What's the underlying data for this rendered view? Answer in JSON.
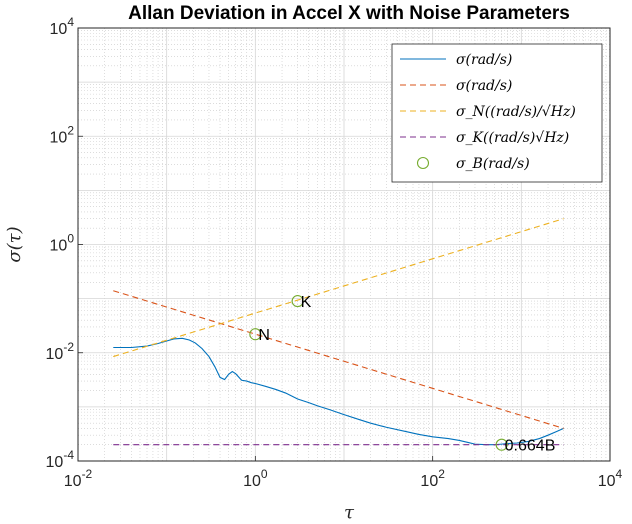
{
  "chart_data": {
    "type": "line",
    "title": "Allan Deviation in Accel X with Noise Parameters",
    "xlabel": "τ",
    "ylabel": "σ(τ)",
    "xscale": "log",
    "yscale": "log",
    "xlim": [
      0.01,
      10000
    ],
    "ylim": [
      0.0001,
      10000
    ],
    "grid": "on (major and minor)",
    "legend_position": "top-right",
    "x_ticks": [
      {
        "value": 0.01,
        "base": "10",
        "exp": "-2"
      },
      {
        "value": 1,
        "base": "10",
        "exp": "0"
      },
      {
        "value": 100,
        "base": "10",
        "exp": "2"
      },
      {
        "value": 10000,
        "base": "10",
        "exp": "4"
      }
    ],
    "y_ticks": [
      {
        "value": 0.0001,
        "base": "10",
        "exp": "-4"
      },
      {
        "value": 0.01,
        "base": "10",
        "exp": "-2"
      },
      {
        "value": 1,
        "base": "10",
        "exp": "0"
      },
      {
        "value": 100,
        "base": "10",
        "exp": "2"
      },
      {
        "value": 10000,
        "base": "10",
        "exp": "4"
      }
    ],
    "series": [
      {
        "name": "σ(rad/s)",
        "color": "#0072BD",
        "dash": "solid",
        "x": [
          0.025,
          0.04,
          0.06,
          0.08,
          0.1,
          0.12,
          0.15,
          0.18,
          0.21,
          0.25,
          0.3,
          0.35,
          0.4,
          0.45,
          0.5,
          0.55,
          0.6,
          0.7,
          0.8,
          0.9,
          1.0,
          1.3,
          1.7,
          2.2,
          3,
          4,
          5,
          7,
          10,
          15,
          20,
          30,
          50,
          70,
          100,
          150,
          200,
          250,
          300,
          400,
          500,
          600,
          700,
          900,
          1200,
          1600,
          2000,
          2500,
          3000
        ],
        "y": [
          0.0125,
          0.0125,
          0.0133,
          0.0148,
          0.0165,
          0.018,
          0.0185,
          0.0172,
          0.0152,
          0.012,
          0.0085,
          0.0055,
          0.0035,
          0.0032,
          0.004,
          0.0045,
          0.0041,
          0.0031,
          0.003,
          0.0028,
          0.0027,
          0.0024,
          0.0021,
          0.0018,
          0.0014,
          0.0012,
          0.00105,
          0.00088,
          0.00072,
          0.00058,
          0.0005,
          0.00042,
          0.00035,
          0.00031,
          0.00028,
          0.00026,
          0.00024,
          0.00022,
          0.000205,
          0.0002,
          0.0002,
          0.000205,
          0.00021,
          0.000215,
          0.00023,
          0.00026,
          0.0003,
          0.00035,
          0.0004
        ]
      },
      {
        "name": "σ(rad/s)",
        "color": "#D95319",
        "dash": "dashed",
        "x": [
          0.025,
          3000
        ],
        "y": [
          0.14,
          0.0004
        ]
      },
      {
        "name": "σ_N((rad/s)/√Hz)",
        "color": "#EDB120",
        "dash": "dashed",
        "x": [
          0.025,
          3000
        ],
        "y": [
          0.0085,
          3.0
        ]
      },
      {
        "name": "σ_K((rad/s)√Hz)",
        "color": "#7E2F8E",
        "dash": "dashed",
        "x": [
          0.025,
          3000
        ],
        "y": [
          0.0002,
          0.0002
        ]
      }
    ],
    "markers": [
      {
        "label": "N",
        "x": 1.0,
        "y": 0.022
      },
      {
        "label": "K",
        "x": 3.0,
        "y": 0.09
      },
      {
        "label": "0.664B",
        "x": 600,
        "y": 0.0002
      }
    ],
    "marker_series_name": "σ_B(rad/s)",
    "marker_color": "#77AC30"
  }
}
